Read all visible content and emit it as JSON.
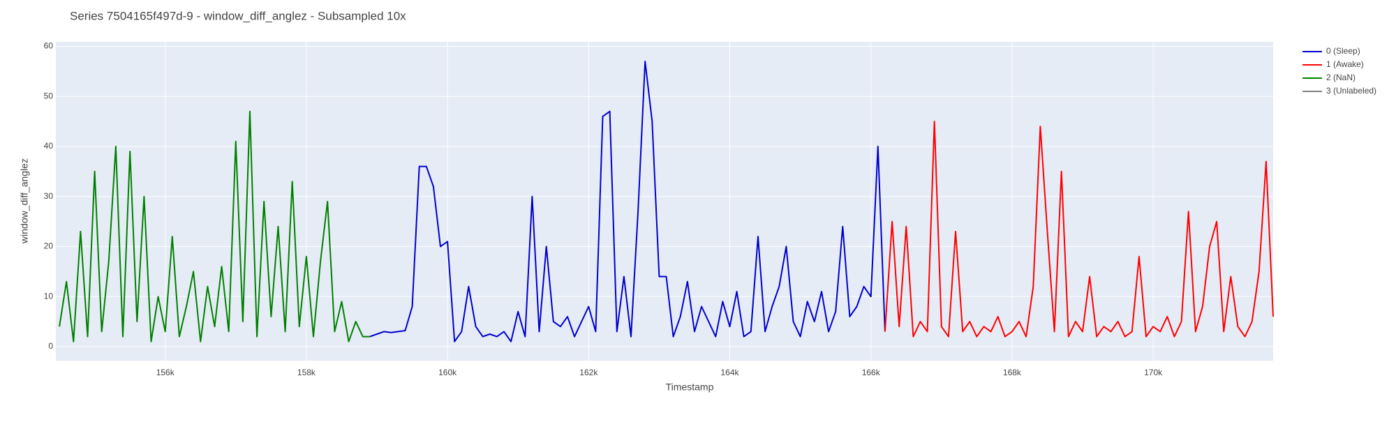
{
  "chart_data": {
    "type": "line",
    "title": "Series 7504165f497d-9 - window_diff_anglez - Subsampled 10x",
    "x_label": "Timestamp",
    "y_label": "window_diff_anglez",
    "xlim": [
      154450,
      171700
    ],
    "ylim": [
      -2.8,
      60.9
    ],
    "xticks": [
      {
        "value": 156000,
        "label": "156k"
      },
      {
        "value": 158000,
        "label": "158k"
      },
      {
        "value": 160000,
        "label": "160k"
      },
      {
        "value": 162000,
        "label": "162k"
      },
      {
        "value": 164000,
        "label": "164k"
      },
      {
        "value": 166000,
        "label": "166k"
      },
      {
        "value": 168000,
        "label": "168k"
      },
      {
        "value": 170000,
        "label": "170k"
      }
    ],
    "yticks": [
      0,
      10,
      20,
      30,
      40,
      50,
      60
    ],
    "grid": true,
    "legend": "right",
    "series": [
      {
        "name": "0 (Sleep)",
        "color": "#0000cc",
        "x": [
          158900,
          159000,
          159100,
          159200,
          159300,
          159400,
          159500,
          159600,
          159700,
          159800,
          159900,
          160000,
          160100,
          160200,
          160300,
          160400,
          160500,
          160600,
          160700,
          160800,
          160900,
          161000,
          161100,
          161200,
          161300,
          161400,
          161500,
          161600,
          161700,
          161800,
          161900,
          162000,
          162100,
          162200,
          162300,
          162400,
          162500,
          162600,
          162700,
          162800,
          162900,
          163000,
          163100,
          163200,
          163300,
          163400,
          163500,
          163600,
          163700,
          163800,
          163900,
          164000,
          164100,
          164200,
          164300,
          164400,
          164500,
          164600,
          164700,
          164800,
          164900,
          165000,
          165100,
          165200,
          165300,
          165400,
          165500,
          165600,
          165700,
          165800,
          165900,
          166000,
          166100,
          166200
        ],
        "values": [
          2,
          2.5,
          3,
          2.8,
          3,
          3.2,
          8,
          36,
          36,
          32,
          20,
          21,
          1,
          3,
          12,
          4,
          2,
          2.5,
          2,
          3,
          1,
          7,
          2,
          30,
          3,
          20,
          5,
          4,
          6,
          2,
          5,
          8,
          3,
          46,
          47,
          3,
          14,
          2,
          27,
          57,
          45,
          14,
          14,
          2,
          6,
          13,
          3,
          8,
          5,
          2,
          9,
          4,
          11,
          2,
          3,
          22,
          3,
          8,
          12,
          20,
          5,
          2,
          9,
          5,
          11,
          3,
          7,
          24,
          6,
          8,
          12,
          10,
          40,
          3
        ]
      },
      {
        "name": "1 (Awake)",
        "color": "#ff0000",
        "x": [
          166200,
          166300,
          166400,
          166500,
          166600,
          166700,
          166800,
          166900,
          167000,
          167100,
          167200,
          167300,
          167400,
          167500,
          167600,
          167700,
          167800,
          167900,
          168000,
          168100,
          168200,
          168300,
          168400,
          168500,
          168600,
          168700,
          168800,
          168900,
          169000,
          169100,
          169200,
          169300,
          169400,
          169500,
          169600,
          169700,
          169800,
          169900,
          170000,
          170100,
          170200,
          170300,
          170400,
          170500,
          170600,
          170700,
          170800,
          170900,
          171000,
          171100,
          171200,
          171300,
          171400,
          171500,
          171600,
          171700
        ],
        "values": [
          3,
          25,
          4,
          24,
          2,
          5,
          3,
          45,
          4,
          2,
          23,
          3,
          5,
          2,
          4,
          3,
          6,
          2,
          3,
          5,
          2,
          12,
          44,
          23,
          3,
          35,
          2,
          5,
          3,
          14,
          2,
          4,
          3,
          5,
          2,
          3,
          18,
          2,
          4,
          3,
          6,
          2,
          5,
          27,
          3,
          8,
          20,
          25,
          3,
          14,
          4,
          2,
          5,
          15,
          37,
          6
        ]
      },
      {
        "name": "2 (NaN)",
        "color": "#008000",
        "x": [
          154500,
          154600,
          154700,
          154800,
          154900,
          155000,
          155100,
          155200,
          155300,
          155400,
          155500,
          155600,
          155700,
          155800,
          155900,
          156000,
          156100,
          156200,
          156300,
          156400,
          156500,
          156600,
          156700,
          156800,
          156900,
          157000,
          157100,
          157200,
          157300,
          157400,
          157500,
          157600,
          157700,
          157800,
          157900,
          158000,
          158100,
          158200,
          158300,
          158400,
          158500,
          158600,
          158700,
          158800,
          158900
        ],
        "values": [
          4,
          13,
          1,
          23,
          2,
          35,
          3,
          17,
          40,
          2,
          39,
          5,
          30,
          1,
          10,
          3,
          22,
          2,
          8,
          15,
          1,
          12,
          4,
          16,
          3,
          41,
          5,
          47,
          2,
          29,
          6,
          24,
          3,
          33,
          4,
          18,
          2,
          17,
          29,
          3,
          9,
          1,
          5,
          2,
          2
        ]
      },
      {
        "name": "3 (Unlabeled)",
        "color": "#808080",
        "x": [],
        "values": []
      }
    ]
  }
}
